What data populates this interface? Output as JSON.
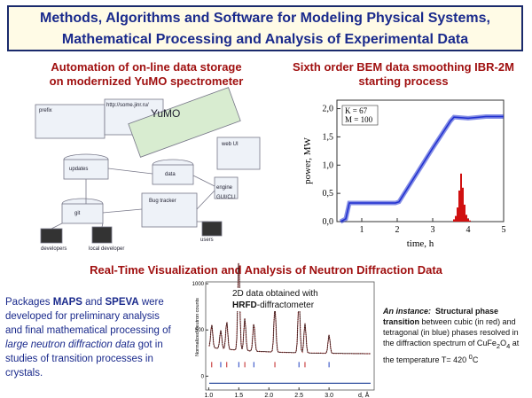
{
  "header": {
    "title_lines": [
      "Methods, Algorithms and Software for Modeling Physical Systems,",
      "Mathematical Processing and Analysis of Experimental Data"
    ]
  },
  "automation": {
    "title_lines": [
      "Automation of on-line data storage",
      "on modernized YuMO spectrometer"
    ],
    "labels": [
      "prefix",
      "http://some.jinr.ru/",
      "YuMO",
      "updates",
      "git",
      "data",
      "web UI",
      "engine",
      "GUI/CLI",
      "Bug tracker",
      "developers",
      "local developer",
      "users"
    ]
  },
  "bem": {
    "title_lines": [
      "Sixth order BEM data smoothing IBR-2M",
      "starting process"
    ],
    "xlabel": "time, h",
    "ylabel": "power, MW",
    "legend": [
      "K = 67",
      "M = 100"
    ],
    "xlim": [
      0.3,
      5
    ],
    "ylim": [
      0,
      2.15
    ],
    "xticks": [
      1,
      2,
      3,
      4,
      5
    ],
    "yticks": [
      {
        "value": 0,
        "label": "0,0"
      },
      {
        "value": 0.5,
        "label": "0,5"
      },
      {
        "value": 1,
        "label": "1,0"
      },
      {
        "value": 1.5,
        "label": "1,5"
      },
      {
        "value": 2,
        "label": "2,0"
      }
    ],
    "power": {
      "color": "#1f2fd0",
      "x": [
        0.4,
        0.55,
        0.65,
        1.0,
        1.5,
        1.95,
        2.05,
        2.5,
        3.0,
        3.5,
        3.6,
        4.0,
        4.5,
        5.0
      ],
      "values": [
        0.0,
        0.05,
        0.33,
        0.33,
        0.33,
        0.33,
        0.35,
        0.8,
        1.3,
        1.78,
        1.85,
        1.83,
        1.86,
        1.86
      ]
    },
    "peak": {
      "color": "#d01010",
      "x": [
        3.6,
        3.65,
        3.7,
        3.75,
        3.8,
        3.85,
        3.9,
        3.95,
        4.0,
        4.05
      ],
      "values": [
        0.04,
        0.1,
        0.25,
        0.55,
        0.85,
        0.6,
        0.3,
        0.12,
        0.05,
        0.02
      ]
    }
  },
  "visualization": {
    "title": "Real-Time Visualization and Analysis of Neutron Diffraction Data",
    "left_text": [
      "Packages ",
      "MAPS",
      " and ",
      "SPEVA",
      " were developed for preliminary analysis and final mathematical processing of ",
      "large neutron diffraction data",
      " got in studies of transition processes in crystals."
    ],
    "inset": [
      "2D data obtained with ",
      "HRFD",
      "-diffractometer"
    ],
    "right_text": [
      "An instance:",
      "Structural phase transition",
      " between cubic (in red) and tetragonal (in blue) phases resolved in the diffraction spectrum of CuFe",
      "2",
      "O",
      "4",
      " at the temperature T= 420 ",
      "0",
      "C"
    ]
  },
  "diffraction": {
    "ylabel": "Normalized neutron counts",
    "xlabel": "d, Å",
    "xlim": [
      0.95,
      3.75
    ],
    "ylim": [
      -150,
      1020
    ],
    "xticks": [
      {
        "value": 1,
        "label": "1.0"
      },
      {
        "value": 1.5,
        "label": "1.5"
      },
      {
        "value": 2,
        "label": "2.0"
      },
      {
        "value": 2.5,
        "label": "2.5"
      },
      {
        "value": 3,
        "label": "3.0"
      }
    ],
    "yticks": [
      0,
      500,
      1000
    ],
    "peaks": {
      "x": [
        1.05,
        1.2,
        1.3,
        1.5,
        1.6,
        1.75,
        2.1,
        2.5,
        2.6,
        3.0
      ],
      "values": [
        250,
        200,
        300,
        980,
        350,
        300,
        500,
        600,
        320,
        200
      ]
    }
  }
}
